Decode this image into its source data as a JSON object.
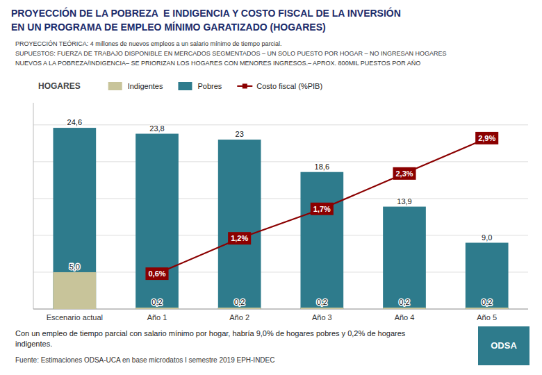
{
  "chart_data": {
    "type": "bar",
    "title": [
      "PROYECCIÓN DE LA POBREZA  E INDIGENCIA Y COSTO FISCAL DE LA INVERSIÓN",
      "EN UN PROGRAMA DE EMPLEO MÍNIMO GARATIZADO (HOGARES)"
    ],
    "subtitle": [
      "PROYECCIÓN TEÓRICA: 4 millones de nuevos empleos a un salario mínimo de tiempo parcial.",
      "SUPUESTOS: FUERZA DE TRABAJO DISPONIBLE EN MERCADOS SEGMENTADOS – UN SOLO PUESTO POR HOGAR – NO INGRESAN HOGARES",
      "NUEVOS A LA POBREZA/INDIGENCIA– SE PRIORIZAN LOS HOGARES CON MENORES INGRESOS.– APROX. 800MIL PUESTOS POR AÑO"
    ],
    "ylabel": "HOGARES",
    "categories": [
      "Escenario actual",
      "Año 1",
      "Año 2",
      "Año 3",
      "Año 4",
      "Año 5"
    ],
    "series": [
      {
        "name": "Indigentes",
        "color": "#c8c49a",
        "values": [
          5.0,
          0.2,
          0.2,
          0.2,
          0.2,
          0.2
        ],
        "value_labels": [
          "5,0",
          "0,2",
          "0,2",
          "0,2",
          "0,2",
          "0,2"
        ]
      },
      {
        "name": "Pobres",
        "color": "#2e7b8c",
        "values": [
          24.6,
          23.8,
          23.0,
          18.6,
          13.9,
          9.0
        ],
        "value_labels": [
          "24,6",
          "23,8",
          "23",
          "18,6",
          "13,9",
          "9,0"
        ]
      },
      {
        "name": "Costo fiscal (%PIB)",
        "type": "line",
        "axis": "y2",
        "color": "#8b0000",
        "marker": "square",
        "values": [
          null,
          0.6,
          1.2,
          1.7,
          2.3,
          2.9
        ],
        "value_labels": [
          null,
          "0,6%",
          "1,2%",
          "1,7%",
          "2,3%",
          "2,9%"
        ]
      }
    ],
    "stacked": false,
    "ylim": [
      0,
      28
    ],
    "yticks": [
      0,
      5,
      10,
      15,
      20,
      25
    ],
    "y2lim": [
      0,
      3.5
    ],
    "grid": true,
    "legend": "top",
    "data_labels": true,
    "tick_labels": "x",
    "annotations": [
      "Con un empleo de tiempo parcial con salario mínimo por hogar, habría 9,0% de hogares pobres y 0,2% de hogares",
      "indigentes.",
      "Fuente: Estimaciones ODSA-UCA en base microdatos I semestre 2019 EPH-INDEC",
      "ODSA"
    ]
  }
}
